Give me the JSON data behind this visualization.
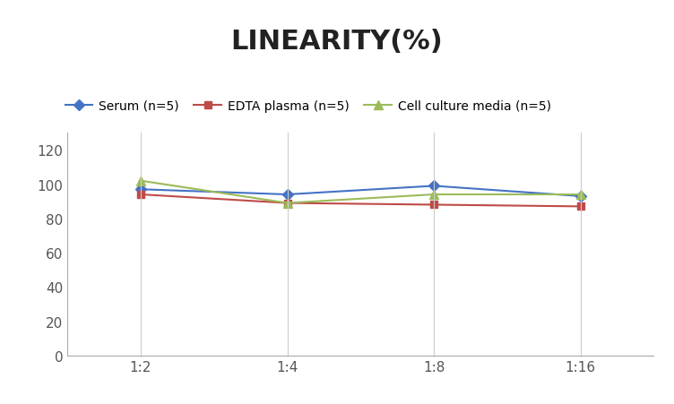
{
  "title": "LINEARITY(%)",
  "x_labels": [
    "1:2",
    "1:4",
    "1:8",
    "1:16"
  ],
  "x_positions": [
    0,
    1,
    2,
    3
  ],
  "serum": [
    97,
    94,
    99,
    93
  ],
  "edta_plasma": [
    94,
    89,
    88,
    87
  ],
  "cell_culture": [
    102,
    89,
    94,
    94
  ],
  "serum_color": "#4472C4",
  "edta_color": "#BE4B48",
  "cell_color": "#9BBB59",
  "ylim": [
    0,
    130
  ],
  "yticks": [
    0,
    20,
    40,
    60,
    80,
    100,
    120
  ],
  "legend_labels": [
    "Serum (n=5)",
    "EDTA plasma (n=5)",
    "Cell culture media (n=5)"
  ],
  "title_fontsize": 22,
  "bg_color": "#FFFFFF"
}
